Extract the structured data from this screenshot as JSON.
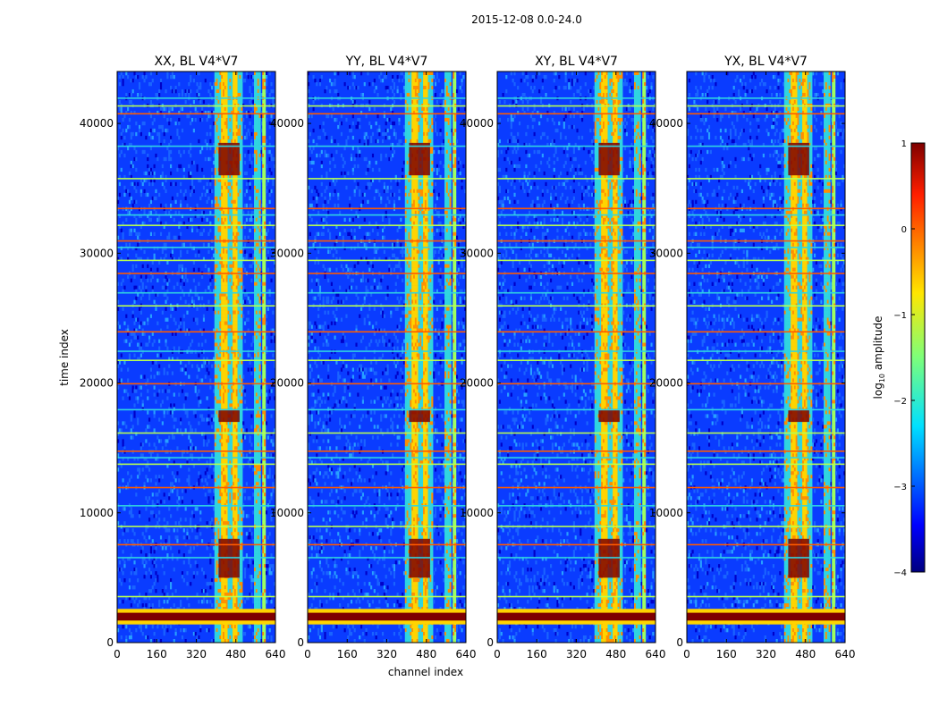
{
  "figure": {
    "title": "2015-12-08 0.0-24.0",
    "ylabel": "time index",
    "xlabel": "channel index",
    "colors": {
      "low": "#00007f",
      "background": "#0a3cff",
      "mid": "#30d5e0",
      "high": "#ffd400",
      "max": "#7f0000"
    }
  },
  "chart_data": [
    {
      "type": "heatmap",
      "title": "XX, BL V4*V7",
      "x_ticks": [
        0,
        160,
        320,
        480,
        640
      ],
      "xlim": [
        0,
        640
      ],
      "y_ticks": [
        0,
        10000,
        20000,
        30000,
        40000
      ],
      "ylim": [
        0,
        44000
      ]
    },
    {
      "type": "heatmap",
      "title": "YY, BL V4*V7",
      "x_ticks": [
        0,
        160,
        320,
        480,
        640
      ],
      "xlim": [
        0,
        640
      ],
      "y_ticks": [
        0,
        10000,
        20000,
        30000,
        40000
      ],
      "ylim": [
        0,
        44000
      ]
    },
    {
      "type": "heatmap",
      "title": "XY, BL V4*V7",
      "x_ticks": [
        0,
        160,
        320,
        480,
        640
      ],
      "xlim": [
        0,
        640
      ],
      "y_ticks": [
        0,
        10000,
        20000,
        30000,
        40000
      ],
      "ylim": [
        0,
        44000
      ]
    },
    {
      "type": "heatmap",
      "title": "YX, BL V4*V7",
      "x_ticks": [
        0,
        160,
        320,
        480,
        640
      ],
      "xlim": [
        0,
        640
      ],
      "y_ticks": [
        0,
        10000,
        20000,
        30000,
        40000
      ],
      "ylim": [
        0,
        44000
      ]
    }
  ],
  "colorbar": {
    "label_prefix": "log",
    "label_sub": "10",
    "label_suffix": " amplitude",
    "ticks": [
      "1",
      "0",
      "−1",
      "−2",
      "−3",
      "−4"
    ],
    "range": [
      -4,
      1
    ]
  }
}
